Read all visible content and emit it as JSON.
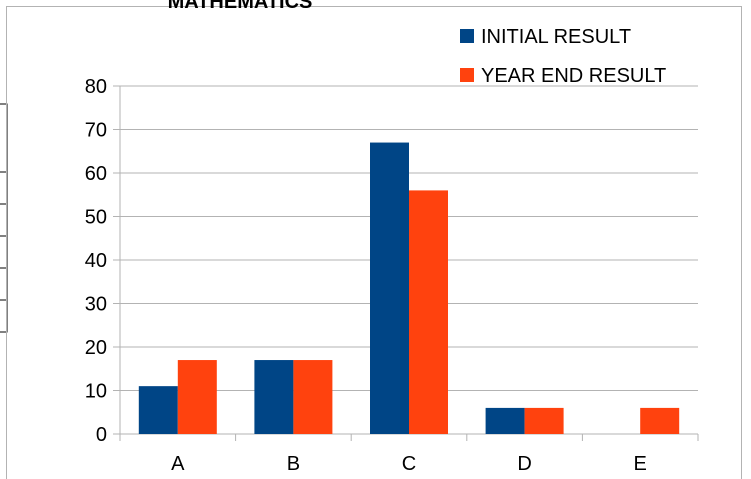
{
  "chart_data": {
    "type": "bar",
    "title": "MATHEMATICS",
    "categories": [
      "A",
      "B",
      "C",
      "D",
      "E"
    ],
    "series": [
      {
        "name": "INITIAL RESULT",
        "values": [
          11,
          17,
          67,
          6,
          0
        ],
        "color": "#004586"
      },
      {
        "name": "YEAR END RESULT",
        "values": [
          17,
          17,
          56,
          6,
          6
        ],
        "color": "#ff420e"
      }
    ],
    "ylim": [
      0,
      80
    ],
    "yticks": [
      0,
      10,
      20,
      30,
      40,
      50,
      60,
      70,
      80
    ],
    "xlabel": "",
    "ylabel": "",
    "grid": true,
    "legend_position": "top-right"
  }
}
